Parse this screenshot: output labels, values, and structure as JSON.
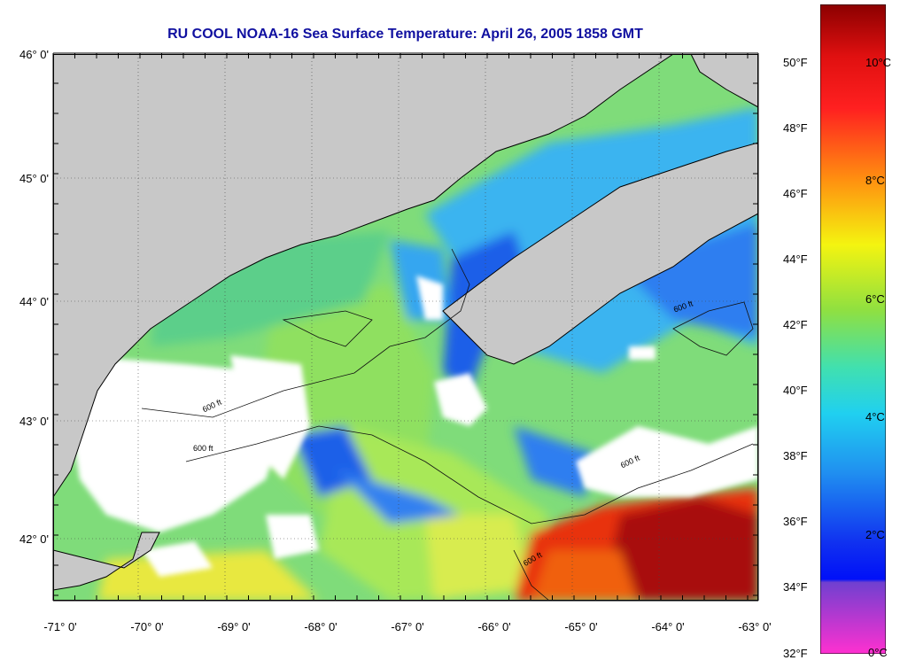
{
  "title": "RU COOL  NOAA-16  Sea Surface Temperature:  April 26, 2005 1858 GMT",
  "axes": {
    "lat_labels": [
      "46° 0'",
      "45° 0'",
      "44° 0'",
      "43° 0'",
      "42° 0'"
    ],
    "lon_labels": [
      "-71° 0'",
      "-70° 0'",
      "-69° 0'",
      "-68° 0'",
      "-67° 0'",
      "-66° 0'",
      "-65° 0'",
      "-64° 0'",
      "-63° 0'"
    ]
  },
  "contour_label": "600 ft",
  "colorbar": {
    "fahrenheit_labels": [
      "50°F",
      "48°F",
      "46°F",
      "44°F",
      "42°F",
      "40°F",
      "38°F",
      "36°F",
      "34°F",
      "32°F"
    ],
    "celsius_labels": [
      "10°C",
      "8°C",
      "6°C",
      "4°C",
      "2°C",
      "0°C"
    ]
  },
  "colors": {
    "land": "#c8c8c8",
    "cloud": "#ffffff",
    "title": "#1010a0"
  }
}
